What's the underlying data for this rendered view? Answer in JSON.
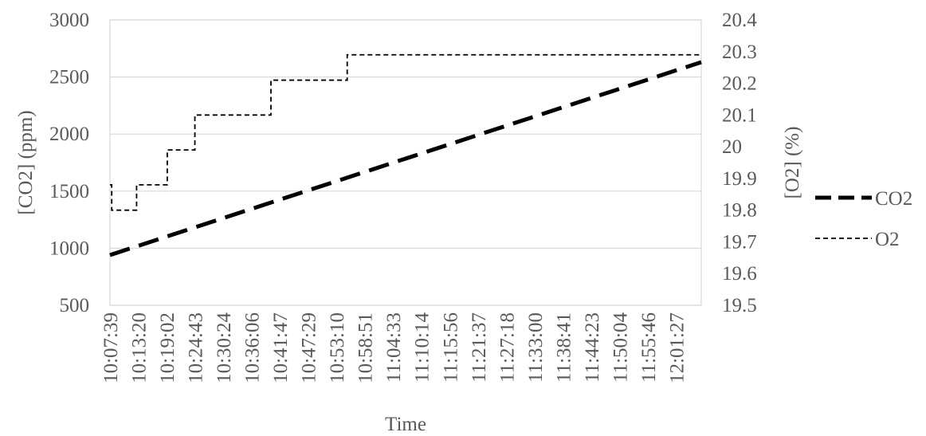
{
  "chart_data": {
    "type": "line",
    "xlabel": "Time",
    "ylabel_left": "[CO2] (ppm)",
    "ylabel_right": "[O2] (%)",
    "ylim_left": [
      500,
      3000
    ],
    "ylim_right": [
      19.5,
      20.4
    ],
    "yticks_left": [
      "500",
      "1000",
      "1500",
      "2000",
      "2500",
      "3000"
    ],
    "yticks_right": [
      "19.5",
      "19.6",
      "19.7",
      "19.8",
      "19.9",
      "20",
      "20.1",
      "20.2",
      "20.3",
      "20.4"
    ],
    "x_tick_labels": [
      "10:07:39",
      "10:13:20",
      "10:19:02",
      "10:24:43",
      "10:30:24",
      "10:36:06",
      "10:41:47",
      "10:47:29",
      "10:53:10",
      "10:58:51",
      "11:04:33",
      "11:10:14",
      "11:15:56",
      "11:21:37",
      "11:27:18",
      "11:33:00",
      "11:38:41",
      "11:44:23",
      "11:50:04",
      "11:55:46",
      "12:01:27"
    ],
    "x_range": [
      "10:07:39",
      "12:06:30"
    ],
    "grid": "horizontal",
    "legend_position": "right",
    "series": [
      {
        "name": "CO2",
        "axis": "left",
        "style": "long-dash-thick",
        "color": "#000000",
        "points": [
          [
            "10:07:39",
            940
          ],
          [
            "12:06:30",
            2630
          ]
        ]
      },
      {
        "name": "O2",
        "axis": "right",
        "style": "short-dash-thin",
        "color": "#000000",
        "points": [
          [
            "10:07:39",
            19.88
          ],
          [
            "10:08:00",
            19.88
          ],
          [
            "10:08:00",
            19.8
          ],
          [
            "10:13:00",
            19.8
          ],
          [
            "10:13:00",
            19.88
          ],
          [
            "10:19:10",
            19.88
          ],
          [
            "10:19:10",
            19.99
          ],
          [
            "10:24:43",
            19.99
          ],
          [
            "10:24:43",
            20.1
          ],
          [
            "10:40:00",
            20.1
          ],
          [
            "10:40:00",
            20.21
          ],
          [
            "10:55:20",
            20.21
          ],
          [
            "10:55:20",
            20.29
          ],
          [
            "12:06:30",
            20.29
          ]
        ]
      }
    ]
  }
}
